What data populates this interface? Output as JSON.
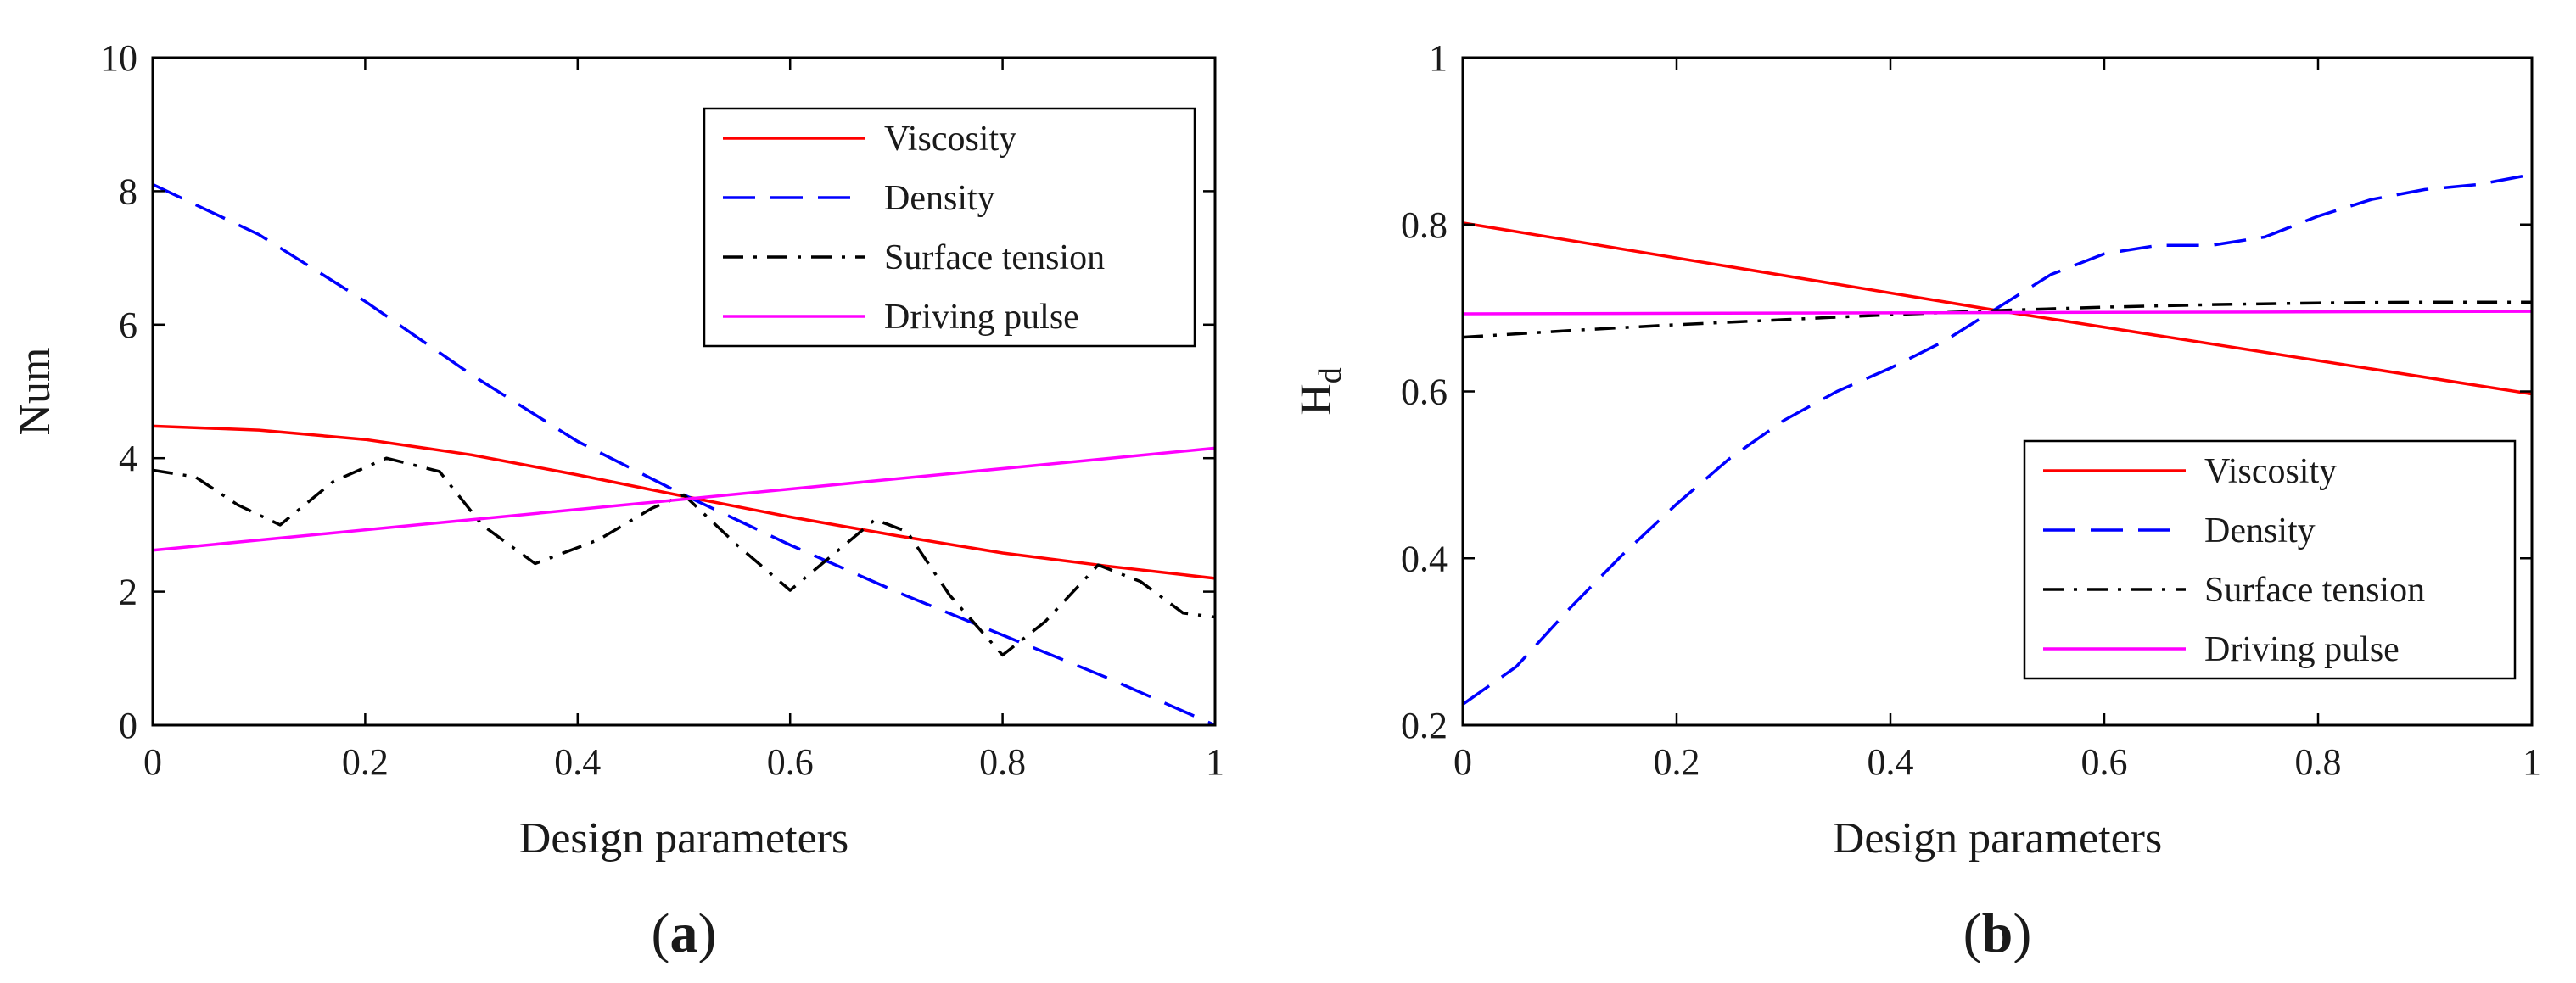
{
  "chart_data": [
    {
      "type": "line",
      "panel_label": "a",
      "title": "",
      "xlabel": "Design parameters",
      "ylabel": "Num",
      "ylabel_sub": "",
      "xlim": [
        0,
        1
      ],
      "ylim": [
        0,
        10
      ],
      "xticks": [
        0,
        0.2,
        0.4,
        0.6,
        0.8,
        1
      ],
      "xtick_labels": [
        "0",
        "0.2",
        "0.4",
        "0.6",
        "0.8",
        "1"
      ],
      "yticks": [
        0,
        2,
        4,
        6,
        8,
        10
      ],
      "ytick_labels": [
        "0",
        "2",
        "4",
        "6",
        "8",
        "10"
      ],
      "legend_position": "top-right",
      "grid": false,
      "series": [
        {
          "name": "Viscosity",
          "color": "#ff0000",
          "style": "solid",
          "x": [
            0,
            0.1,
            0.2,
            0.3,
            0.4,
            0.5,
            0.6,
            0.7,
            0.8,
            0.9,
            1.0
          ],
          "y": [
            4.48,
            4.42,
            4.28,
            4.05,
            3.75,
            3.43,
            3.12,
            2.84,
            2.58,
            2.38,
            2.2
          ]
        },
        {
          "name": "Density",
          "color": "#0000ff",
          "style": "dashed",
          "x": [
            0,
            0.1,
            0.2,
            0.3,
            0.4,
            0.5,
            0.6,
            0.7,
            0.8,
            0.9,
            1.0
          ],
          "y": [
            8.1,
            7.35,
            6.35,
            5.25,
            4.25,
            3.45,
            2.7,
            2.0,
            1.35,
            0.7,
            0.0
          ]
        },
        {
          "name": "Surface tension",
          "color": "#000000",
          "style": "dashdot",
          "x": [
            0,
            0.04,
            0.08,
            0.12,
            0.17,
            0.22,
            0.27,
            0.31,
            0.36,
            0.42,
            0.47,
            0.5,
            0.55,
            0.6,
            0.64,
            0.68,
            0.71,
            0.75,
            0.8,
            0.84,
            0.89,
            0.93,
            0.97,
            1.0
          ],
          "y": [
            3.82,
            3.72,
            3.3,
            3.0,
            3.65,
            4.0,
            3.8,
            3.0,
            2.42,
            2.78,
            3.25,
            3.45,
            2.7,
            2.02,
            2.55,
            3.08,
            2.9,
            1.95,
            1.05,
            1.55,
            2.4,
            2.15,
            1.68,
            1.62
          ]
        },
        {
          "name": "Driving pulse",
          "color": "#ff00ff",
          "style": "solid",
          "x": [
            0,
            1.0
          ],
          "y": [
            2.62,
            4.15
          ]
        }
      ]
    },
    {
      "type": "line",
      "panel_label": "b",
      "title": "",
      "xlabel": "Design parameters",
      "ylabel": "H",
      "ylabel_sub": "d",
      "xlim": [
        0,
        1
      ],
      "ylim": [
        0.2,
        1
      ],
      "xticks": [
        0,
        0.2,
        0.4,
        0.6,
        0.8,
        1
      ],
      "xtick_labels": [
        "0",
        "0.2",
        "0.4",
        "0.6",
        "0.8",
        "1"
      ],
      "yticks": [
        0.2,
        0.4,
        0.6,
        0.8,
        1
      ],
      "ytick_labels": [
        "0.2",
        "0.4",
        "0.6",
        "0.8",
        "1"
      ],
      "legend_position": "bottom-right",
      "grid": false,
      "series": [
        {
          "name": "Viscosity",
          "color": "#ff0000",
          "style": "solid",
          "x": [
            0,
            0.5,
            1.0
          ],
          "y": [
            0.802,
            0.697,
            0.597
          ]
        },
        {
          "name": "Density",
          "color": "#0000ff",
          "style": "dashed",
          "x": [
            0,
            0.05,
            0.1,
            0.15,
            0.2,
            0.25,
            0.3,
            0.35,
            0.4,
            0.45,
            0.5,
            0.55,
            0.6,
            0.65,
            0.7,
            0.75,
            0.8,
            0.85,
            0.9,
            0.95,
            1.0
          ],
          "y": [
            0.225,
            0.27,
            0.34,
            0.405,
            0.465,
            0.52,
            0.565,
            0.6,
            0.628,
            0.66,
            0.7,
            0.74,
            0.765,
            0.775,
            0.775,
            0.785,
            0.81,
            0.83,
            0.842,
            0.848,
            0.86
          ]
        },
        {
          "name": "Surface tension",
          "color": "#000000",
          "style": "dashdot",
          "x": [
            0,
            0.1,
            0.2,
            0.3,
            0.4,
            0.5,
            0.6,
            0.7,
            0.8,
            0.9,
            1.0
          ],
          "y": [
            0.665,
            0.673,
            0.68,
            0.686,
            0.692,
            0.697,
            0.701,
            0.704,
            0.706,
            0.707,
            0.707
          ]
        },
        {
          "name": "Driving pulse",
          "color": "#ff00ff",
          "style": "solid",
          "x": [
            0,
            1.0
          ],
          "y": [
            0.693,
            0.696
          ]
        }
      ]
    }
  ]
}
